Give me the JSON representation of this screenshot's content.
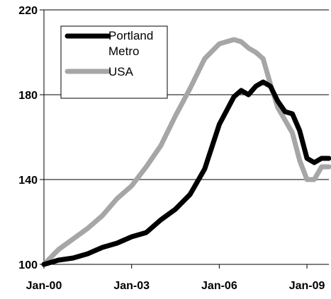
{
  "chart_data": {
    "type": "line",
    "title": "",
    "xlabel": "",
    "ylabel": "",
    "ylim": [
      100,
      220
    ],
    "yticks": [
      100,
      140,
      180,
      220
    ],
    "y_tick_labels": [
      "100",
      "140",
      "180",
      "220"
    ],
    "xlim": [
      2000.0,
      2009.75
    ],
    "xticks": [
      2000,
      2003,
      2006,
      2009
    ],
    "x_tick_labels": [
      "Jan-00",
      "Jan-03",
      "Jan-06",
      "Jan-09"
    ],
    "grid": "horizontal",
    "legend_position": "top-left",
    "series": [
      {
        "name": "Portland Metro",
        "color": "#000000",
        "x": [
          2000.0,
          2000.5,
          2001.0,
          2001.5,
          2002.0,
          2002.5,
          2003.0,
          2003.5,
          2004.0,
          2004.5,
          2005.0,
          2005.5,
          2006.0,
          2006.5,
          2006.75,
          2007.0,
          2007.25,
          2007.5,
          2007.75,
          2008.0,
          2008.25,
          2008.5,
          2008.75,
          2009.0,
          2009.25,
          2009.5,
          2009.75
        ],
        "values": [
          100,
          102,
          103,
          105,
          108,
          110,
          113,
          115,
          121,
          126,
          133,
          145,
          166,
          179,
          182,
          180,
          184,
          186,
          184,
          177,
          172,
          171,
          163,
          150,
          148,
          150,
          150
        ]
      },
      {
        "name": "USA",
        "color": "#a6a6a6",
        "x": [
          2000.0,
          2000.5,
          2001.0,
          2001.5,
          2002.0,
          2002.5,
          2003.0,
          2003.5,
          2004.0,
          2004.5,
          2005.0,
          2005.5,
          2006.0,
          2006.5,
          2006.75,
          2007.0,
          2007.25,
          2007.5,
          2007.75,
          2008.0,
          2008.25,
          2008.5,
          2008.75,
          2009.0,
          2009.25,
          2009.5,
          2009.75
        ],
        "values": [
          100,
          107,
          112,
          117,
          123,
          131,
          137,
          146,
          156,
          170,
          183,
          197,
          204,
          206,
          205,
          202,
          200,
          197,
          185,
          174,
          168,
          162,
          149,
          140,
          140,
          146,
          146
        ]
      }
    ]
  }
}
